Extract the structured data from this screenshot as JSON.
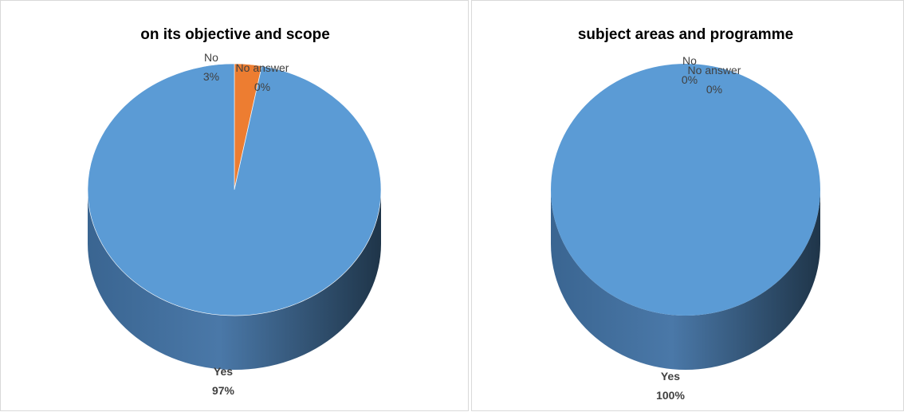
{
  "colors": {
    "yes": "#5b9bd5",
    "no": "#ed7d31",
    "no_answer": "#a5a5a5",
    "side_light": "#4a78a8",
    "side_dark": "#223a52"
  },
  "chart_data": [
    {
      "type": "pie",
      "style": "3d",
      "title": "on its objective and scope",
      "slices": [
        {
          "name": "Yes",
          "label": "Yes",
          "percent_label": "97%",
          "value": 97,
          "color": "#5b9bd5"
        },
        {
          "name": "No",
          "label": "No",
          "percent_label": "3%",
          "value": 3,
          "color": "#ed7d31"
        },
        {
          "name": "No answer",
          "label": "No answer",
          "percent_label": "0%",
          "value": 0,
          "color": "#a5a5a5"
        }
      ]
    },
    {
      "type": "pie",
      "style": "3d",
      "title": "subject areas and programme",
      "slices": [
        {
          "name": "Yes",
          "label": "Yes",
          "percent_label": "100%",
          "value": 100,
          "color": "#5b9bd5"
        },
        {
          "name": "No",
          "label": "No",
          "percent_label": "0%",
          "value": 0,
          "color": "#ed7d31"
        },
        {
          "name": "No answer",
          "label": "No answer",
          "percent_label": "0%",
          "value": 0,
          "color": "#a5a5a5"
        }
      ]
    }
  ]
}
